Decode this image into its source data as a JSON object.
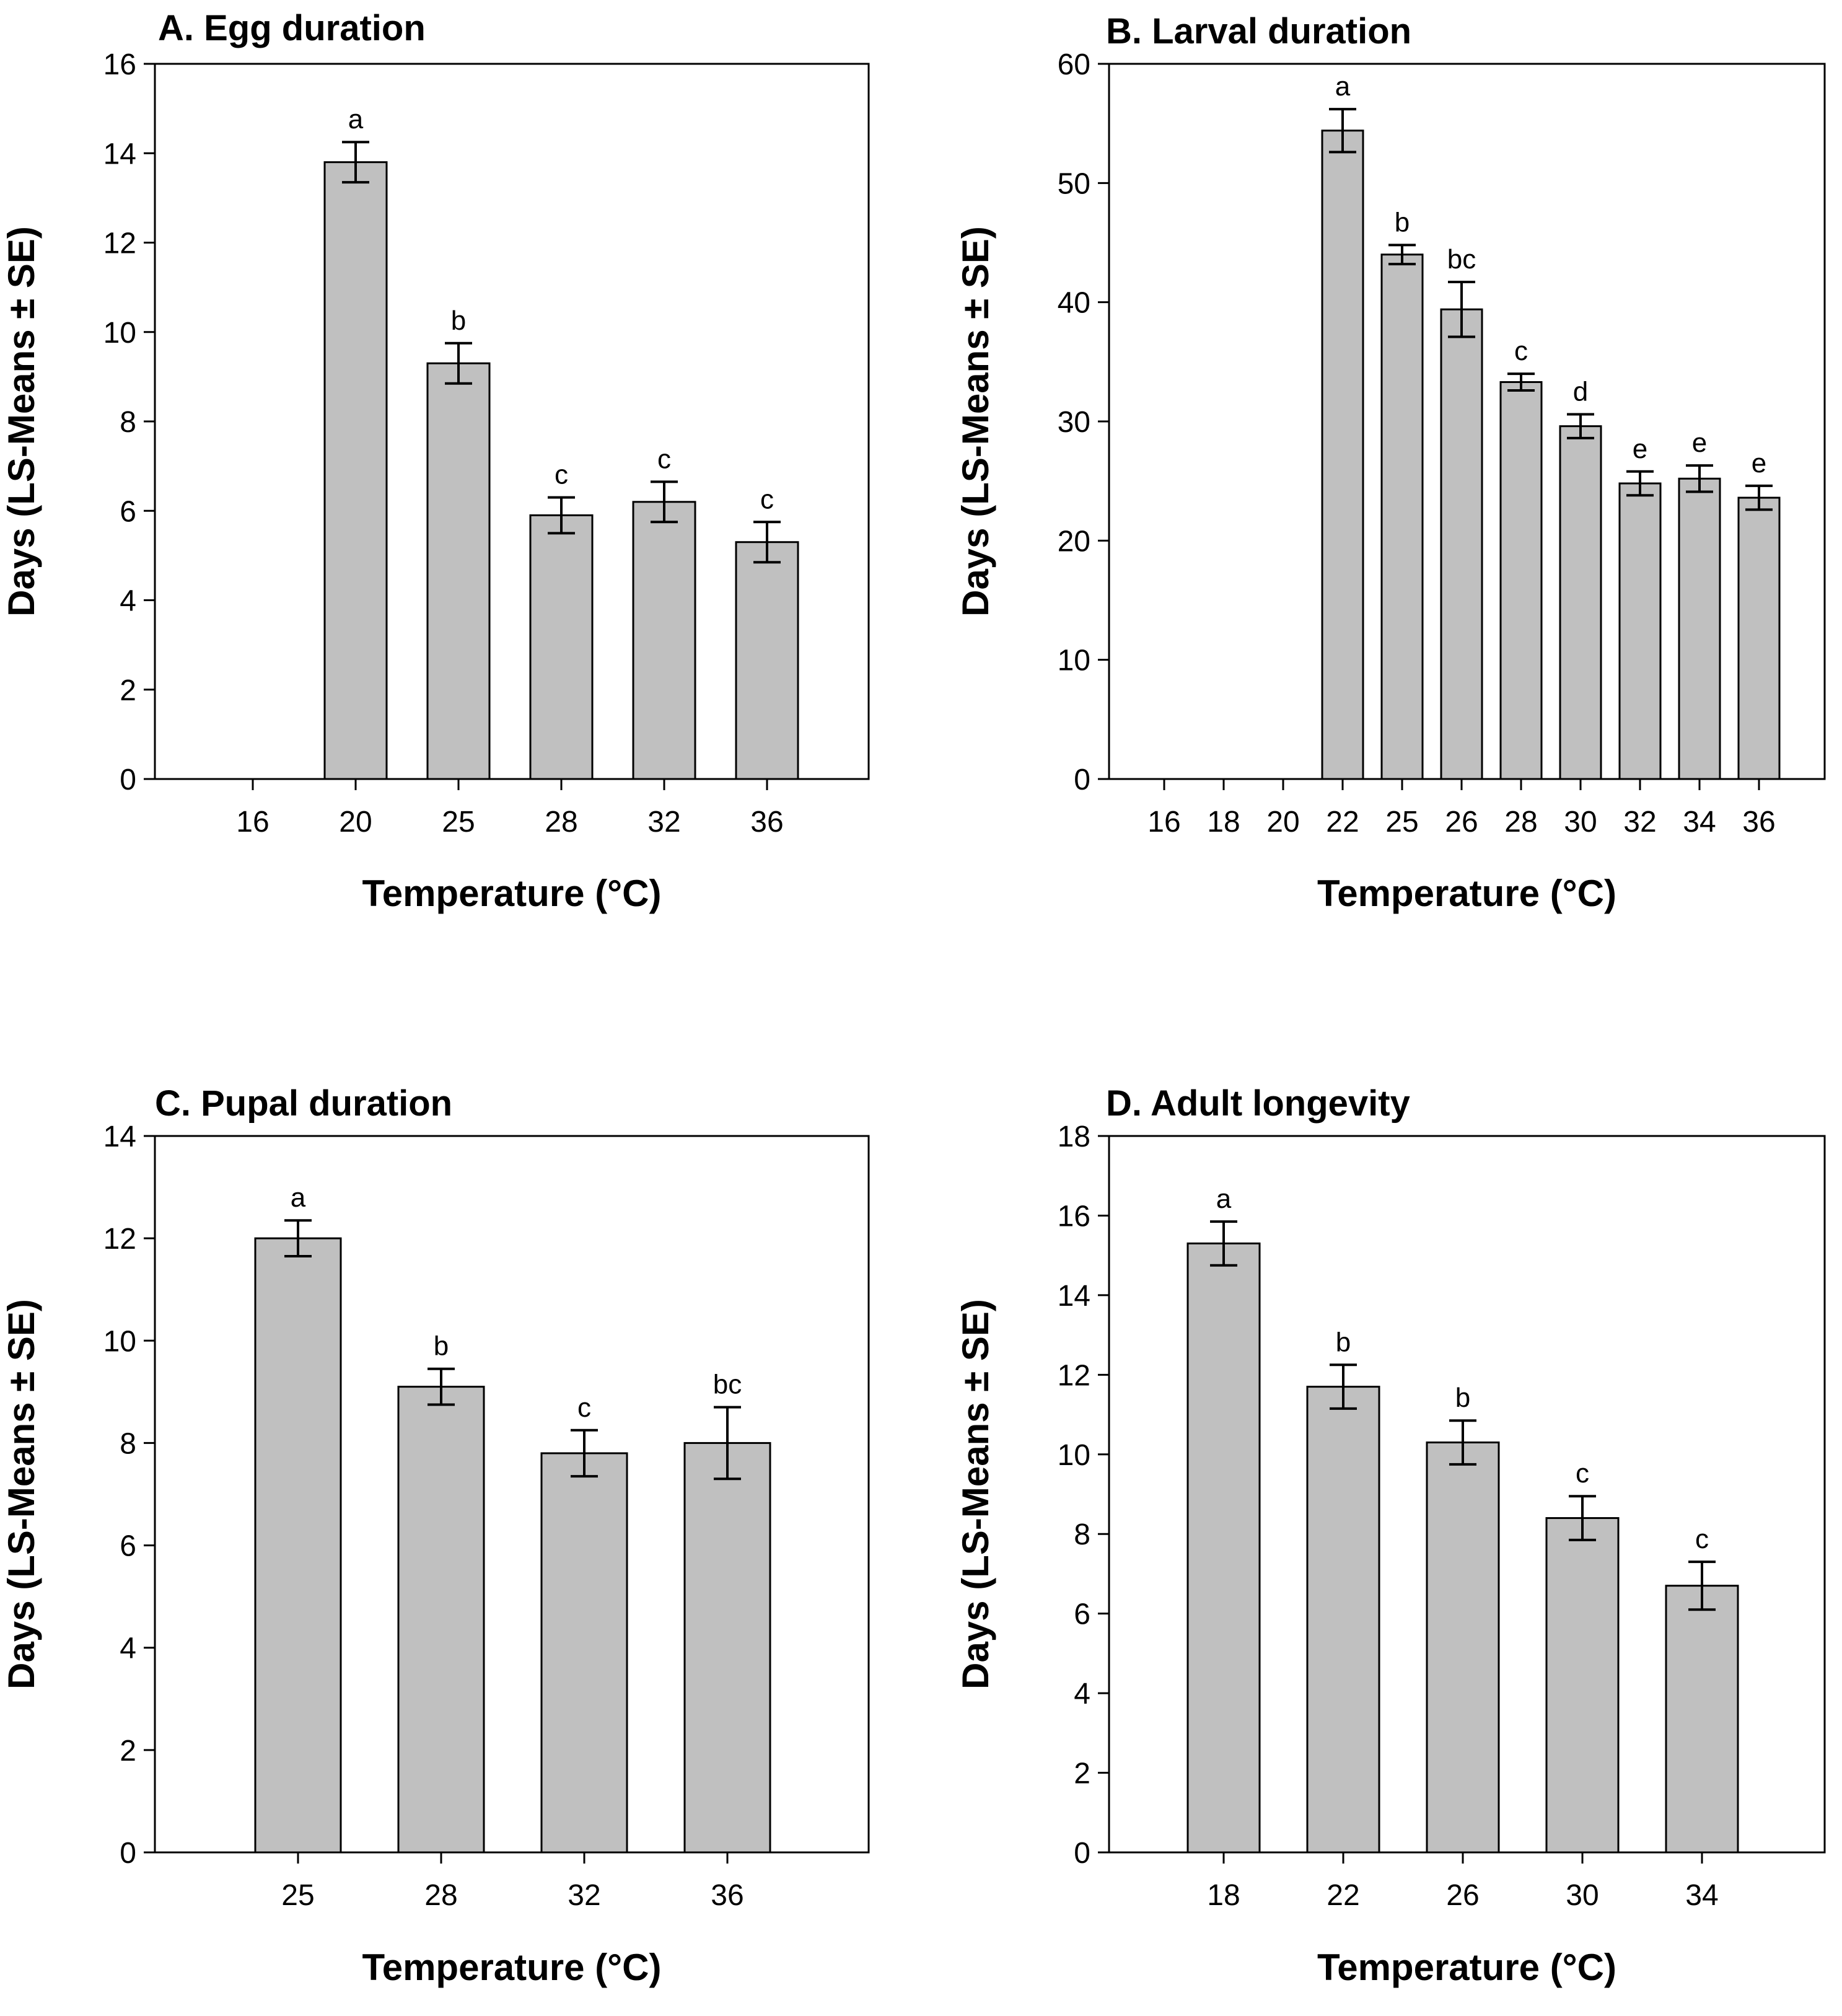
{
  "colors": {
    "bar_fill": "#c0c0c0",
    "stroke": "#000000",
    "background": "#ffffff"
  },
  "chart_data": [
    {
      "type": "bar",
      "title": "A. Egg duration",
      "xlabel": "Temperature (°C)",
      "ylabel": "Days (LS-Means ± SE)",
      "ylim": [
        0,
        16
      ],
      "yticks": [
        0,
        2,
        4,
        6,
        8,
        10,
        12,
        14,
        16
      ],
      "categories": [
        "16",
        "20",
        "25",
        "28",
        "32",
        "36"
      ],
      "values": [
        null,
        13.8,
        9.3,
        5.9,
        6.2,
        5.3
      ],
      "errors": [
        null,
        0.45,
        0.45,
        0.4,
        0.45,
        0.45
      ],
      "letters": [
        "",
        "a",
        "b",
        "c",
        "c",
        "c"
      ]
    },
    {
      "type": "bar",
      "title": "B. Larval duration",
      "xlabel": "Temperature (°C)",
      "ylabel": "Days (LS-Means ± SE)",
      "ylim": [
        0,
        60
      ],
      "yticks": [
        0,
        10,
        20,
        30,
        40,
        50,
        60
      ],
      "categories": [
        "16",
        "18",
        "20",
        "22",
        "25",
        "26",
        "28",
        "30",
        "32",
        "34",
        "36"
      ],
      "values": [
        null,
        null,
        null,
        54.4,
        44.0,
        39.4,
        33.3,
        29.6,
        24.8,
        25.2,
        23.6
      ],
      "errors": [
        null,
        null,
        null,
        1.8,
        0.8,
        2.3,
        0.7,
        1.0,
        1.0,
        1.1,
        1.0
      ],
      "letters": [
        "",
        "",
        "",
        "a",
        "b",
        "bc",
        "c",
        "d",
        "e",
        "e",
        "e"
      ]
    },
    {
      "type": "bar",
      "title": "C. Pupal duration",
      "xlabel": "Temperature (°C)",
      "ylabel": "Days (LS-Means ± SE)",
      "ylim": [
        0,
        14
      ],
      "yticks": [
        0,
        2,
        4,
        6,
        8,
        10,
        12,
        14
      ],
      "categories": [
        "25",
        "28",
        "32",
        "36"
      ],
      "values": [
        12.0,
        9.1,
        7.8,
        8.0
      ],
      "errors": [
        0.35,
        0.35,
        0.45,
        0.7
      ],
      "letters": [
        "a",
        "b",
        "c",
        "bc"
      ]
    },
    {
      "type": "bar",
      "title": "D. Adult longevity",
      "xlabel": "Temperature (°C)",
      "ylabel": "Days (LS-Means ± SE)",
      "ylim": [
        0,
        18
      ],
      "yticks": [
        0,
        2,
        4,
        6,
        8,
        10,
        12,
        14,
        16,
        18
      ],
      "categories": [
        "18",
        "22",
        "26",
        "30",
        "34"
      ],
      "values": [
        15.3,
        11.7,
        10.3,
        8.4,
        6.7
      ],
      "errors": [
        0.55,
        0.55,
        0.55,
        0.55,
        0.6
      ],
      "letters": [
        "a",
        "b",
        "b",
        "c",
        "c"
      ]
    }
  ]
}
